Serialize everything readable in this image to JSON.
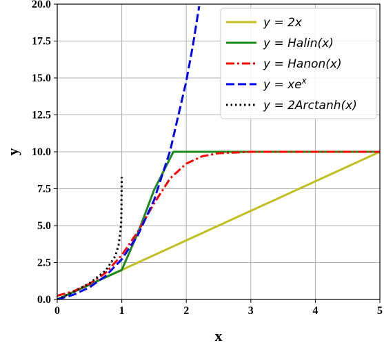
{
  "chart_data": {
    "type": "line",
    "title": "",
    "xlabel": "x",
    "ylabel": "y",
    "xlim": [
      0,
      5
    ],
    "ylim": [
      0,
      20
    ],
    "xticks": [
      "0",
      "1",
      "2",
      "3",
      "4",
      "5"
    ],
    "yticks": [
      "0.0",
      "2.5",
      "5.0",
      "7.5",
      "10.0",
      "12.5",
      "15.0",
      "17.5",
      "20.0"
    ],
    "grid": true,
    "legend_position": "top-right",
    "series": [
      {
        "name": "y = 2x",
        "label_main": "y = 2x",
        "label_sup": "",
        "label_end": "",
        "color": "#bfbf1f",
        "style": "solid",
        "x": [
          0,
          5
        ],
        "y": [
          0,
          10
        ]
      },
      {
        "name": "y = Halin(x)",
        "label_main": "y = Halin(x)",
        "label_sup": "",
        "label_end": "",
        "color": "#1a8a1a",
        "style": "solid",
        "x": [
          0,
          0.25,
          0.5,
          0.75,
          1.0,
          1.25,
          1.5,
          1.8,
          2.5,
          3.0,
          4.0,
          5.0
        ],
        "y": [
          0.0,
          0.5,
          1.0,
          1.5,
          2.0,
          4.5,
          7.4,
          10.0,
          10.0,
          10.0,
          10.0,
          10.0
        ]
      },
      {
        "name": "y = Hanon(x)",
        "label_main": "y = Hanon(x)",
        "label_sup": "",
        "label_end": "",
        "color": "#ff0000",
        "style": "dashdot",
        "x": [
          0,
          0.25,
          0.5,
          0.75,
          1.0,
          1.25,
          1.5,
          1.75,
          2.0,
          2.25,
          2.5,
          3.0,
          3.5,
          4.0,
          5.0
        ],
        "y": [
          0.25,
          0.55,
          1.05,
          1.8,
          3.0,
          4.6,
          6.5,
          8.2,
          9.2,
          9.7,
          9.9,
          10.0,
          10.0,
          10.0,
          10.0
        ]
      },
      {
        "name": "y = xe^x",
        "label_main": "y = xe",
        "label_sup": "x",
        "label_end": "",
        "color": "#0000ff",
        "style": "dashed",
        "x": [
          0,
          0.25,
          0.5,
          0.75,
          1.0,
          1.25,
          1.5,
          1.75,
          2.0,
          2.1,
          2.2
        ],
        "y": [
          0.0,
          0.32,
          0.82,
          1.59,
          2.72,
          4.36,
          6.72,
          10.07,
          14.78,
          17.15,
          19.86
        ]
      },
      {
        "name": "y = 2Arctanh(x)",
        "label_main": "y = 2Arctanh(x)",
        "label_sup": "",
        "label_end": "",
        "color": "#000000",
        "style": "dotted",
        "x": [
          0,
          0.25,
          0.5,
          0.75,
          0.9,
          0.95,
          0.98,
          0.99,
          0.995,
          0.9995
        ],
        "y": [
          0.0,
          0.51,
          1.1,
          1.95,
          2.94,
          3.66,
          4.6,
          5.29,
          5.99,
          8.29
        ]
      }
    ]
  }
}
